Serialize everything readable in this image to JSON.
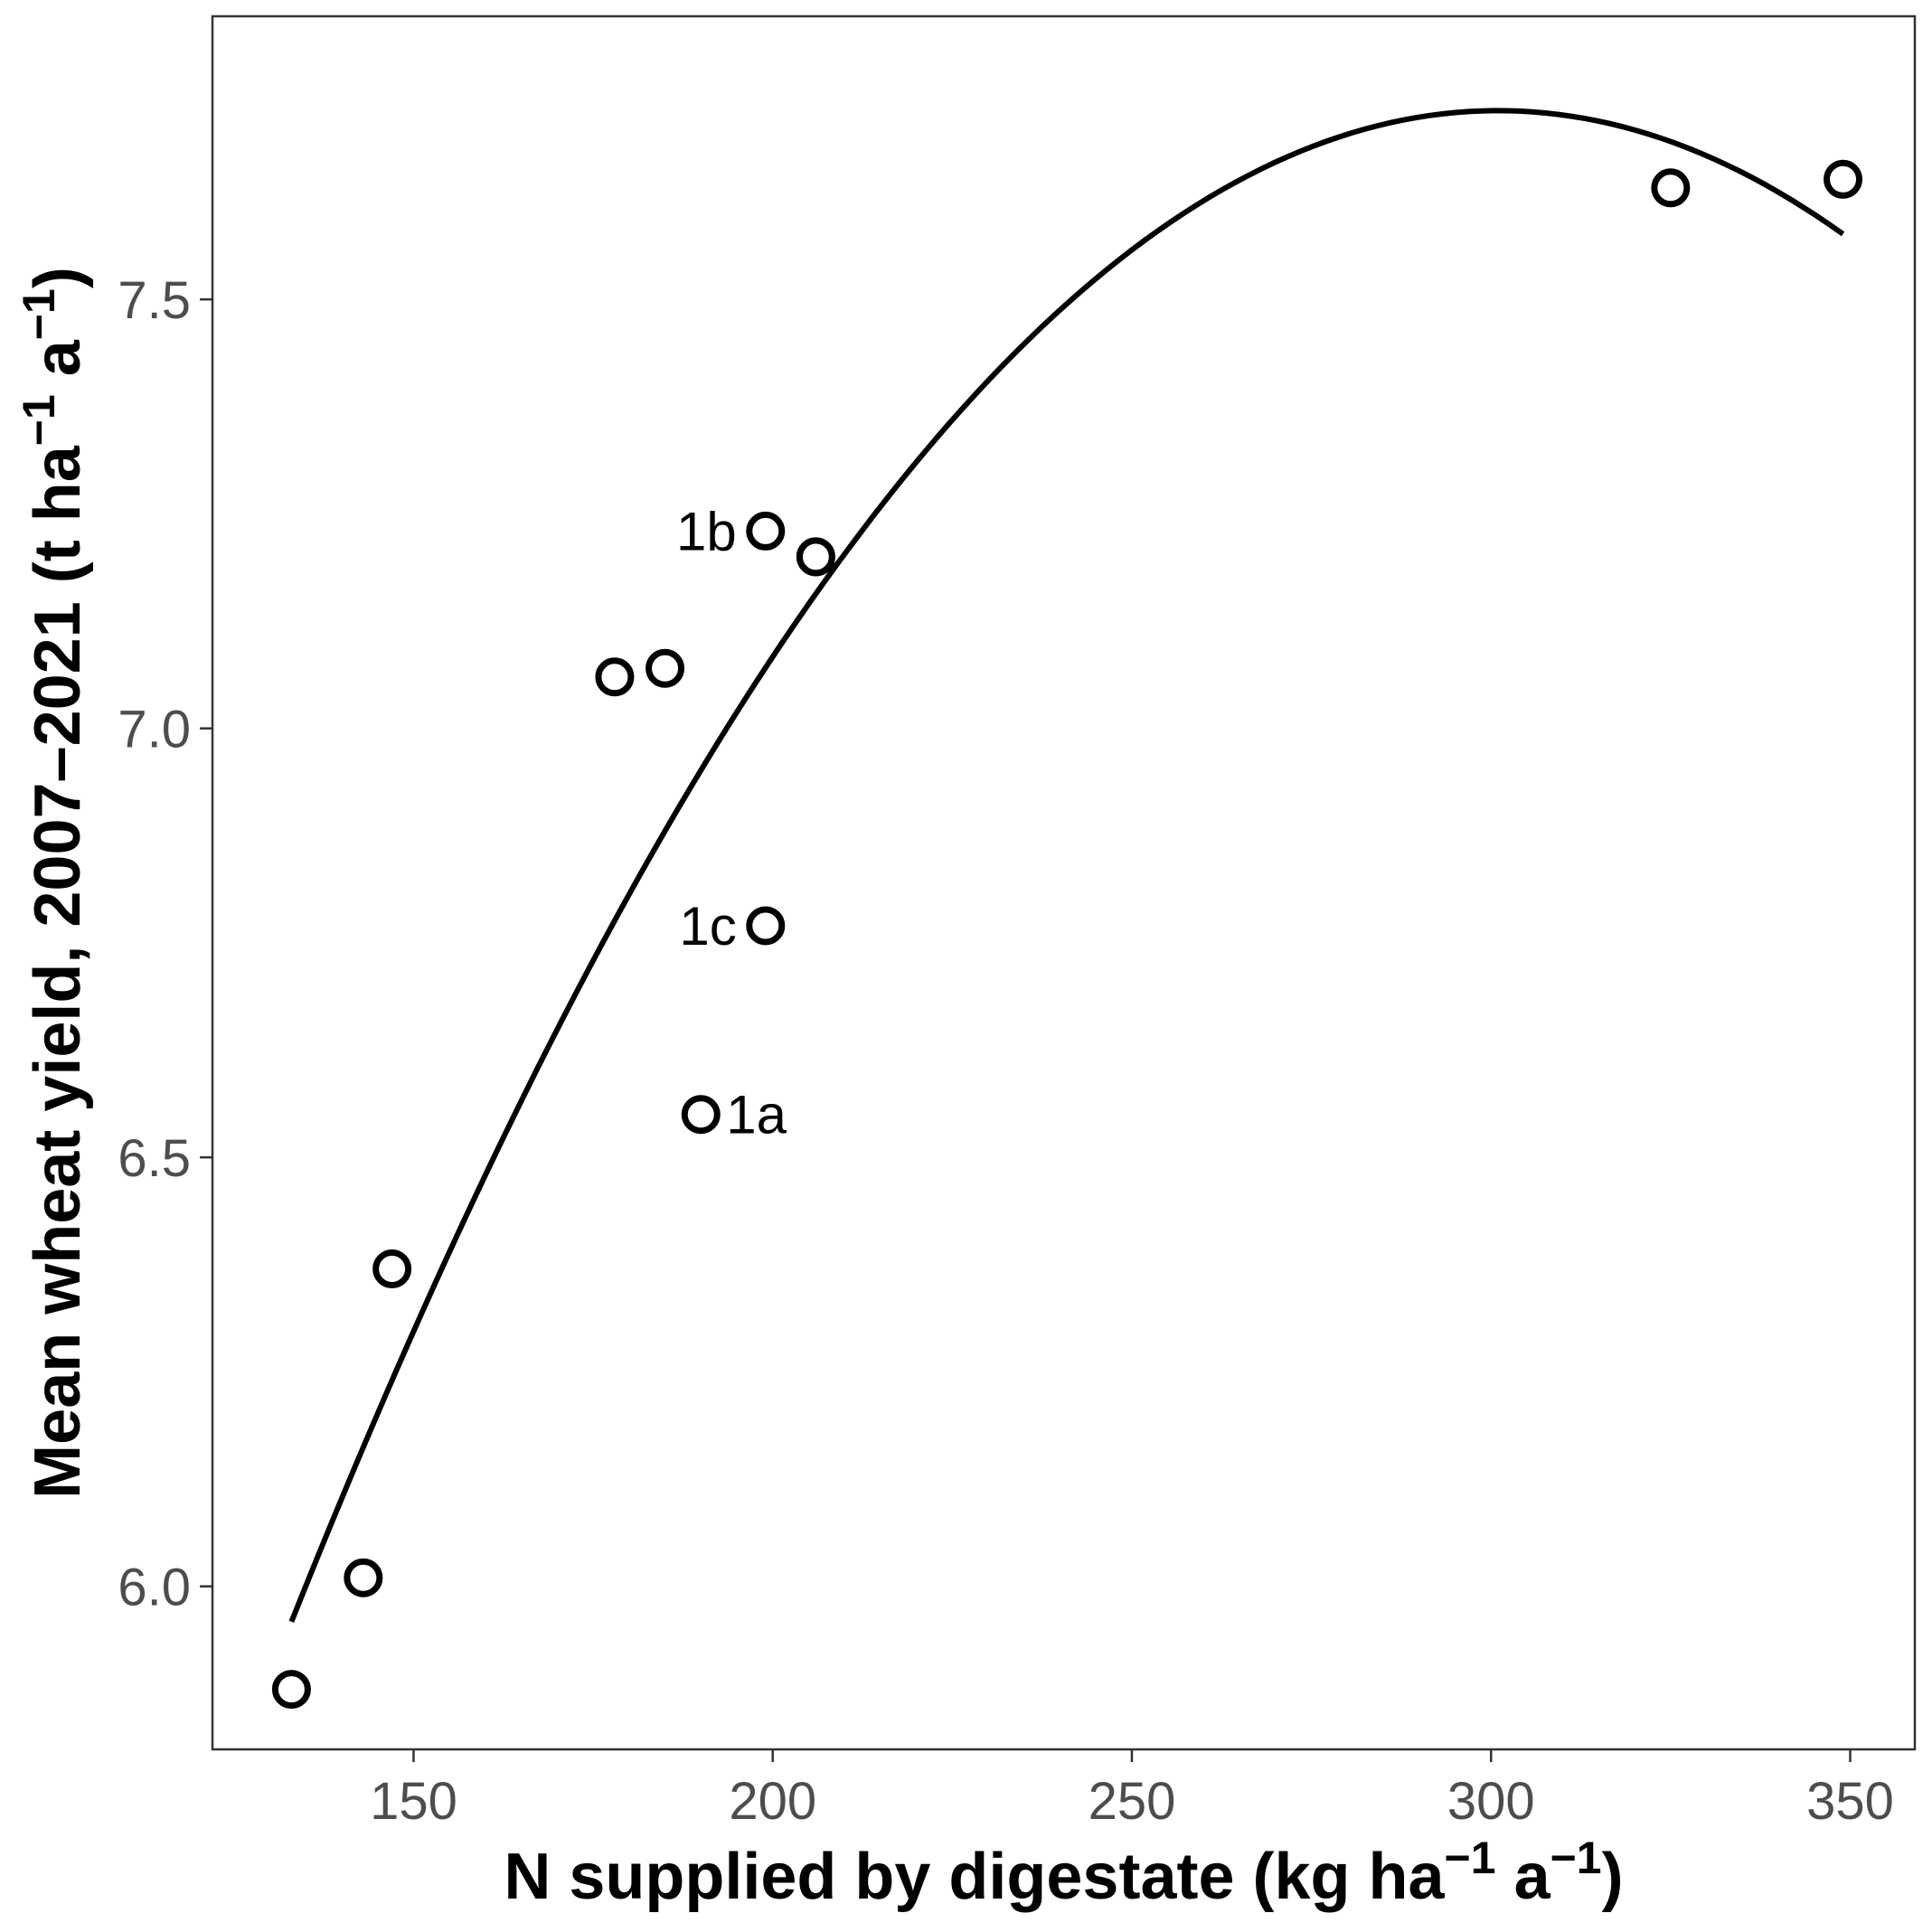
{
  "chart_data": {
    "type": "scatter",
    "title": "",
    "xlabel": {
      "main": "N supplied by digestate (kg ha",
      "sup1": "−1",
      "mid": " a",
      "sup2": "−1",
      "end": ")"
    },
    "ylabel": {
      "main": "Mean wheat yield, 2007–2021 (t ha",
      "sup1": "−1",
      "mid": " a",
      "sup2": "−1",
      "end": ")"
    },
    "xlim": [
      122,
      359
    ],
    "ylim": [
      5.81,
      7.83
    ],
    "xticks": [
      150,
      200,
      250,
      300,
      350
    ],
    "xtick_labels": [
      "150",
      "200",
      "250",
      "300",
      "350"
    ],
    "yticks": [
      6.0,
      6.5,
      7.0,
      7.5
    ],
    "ytick_labels": [
      "6.0",
      "6.5",
      "7.0",
      "7.5"
    ],
    "grid": false,
    "points": [
      {
        "x": 133,
        "y": 5.88,
        "label": ""
      },
      {
        "x": 143,
        "y": 6.01,
        "label": ""
      },
      {
        "x": 147,
        "y": 6.37,
        "label": ""
      },
      {
        "x": 178,
        "y": 7.06,
        "label": ""
      },
      {
        "x": 185,
        "y": 7.07,
        "label": ""
      },
      {
        "x": 190,
        "y": 6.55,
        "label": "1a"
      },
      {
        "x": 199,
        "y": 7.23,
        "label": "1b"
      },
      {
        "x": 199,
        "y": 6.77,
        "label": "1c"
      },
      {
        "x": 206,
        "y": 7.2,
        "label": ""
      },
      {
        "x": 206,
        "y": 7.2,
        "label": ""
      },
      {
        "x": 325,
        "y": 7.63,
        "label": ""
      },
      {
        "x": 349,
        "y": 7.64,
        "label": ""
      }
    ],
    "fit": {
      "type": "quadratic",
      "vertex_x": 301,
      "vertex_y": 7.72,
      "curvature": 6.24e-05,
      "x_range": [
        133,
        349
      ]
    }
  }
}
